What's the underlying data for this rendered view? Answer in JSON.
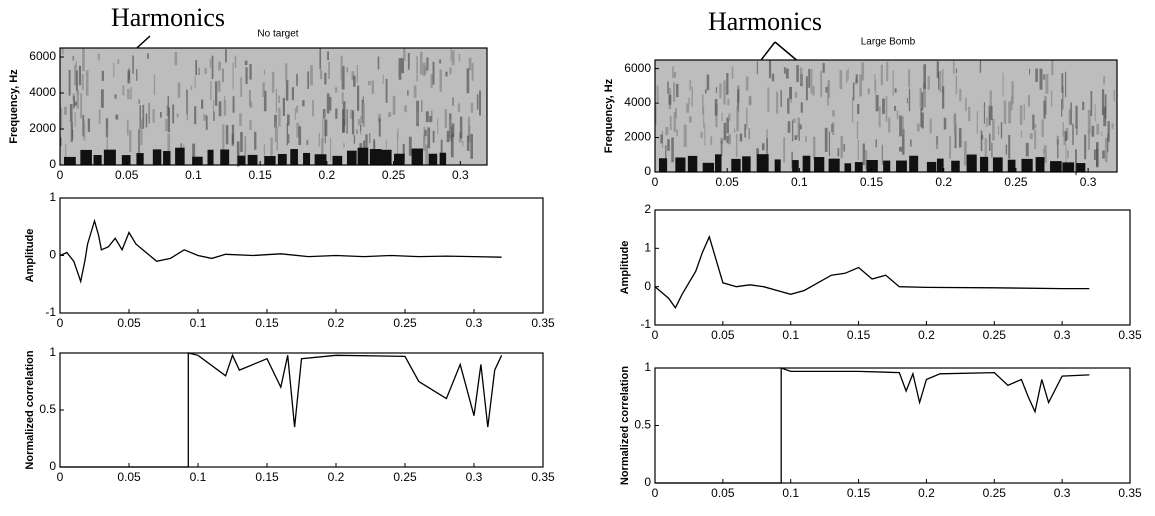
{
  "chart_data": [
    {
      "type": "spectrogram",
      "annotations": [
        "Harmonics",
        "No target"
      ],
      "ylabel": "Frequency, Hz",
      "xlim": [
        0,
        0.32
      ],
      "xticks": [
        0,
        0.05,
        0.1,
        0.15,
        0.2,
        0.25,
        0.3
      ],
      "ylim": [
        0,
        6500
      ],
      "yticks": [
        0,
        2000,
        4000,
        6000
      ]
    },
    {
      "type": "line",
      "ylabel": "Amplitude",
      "color": "#000000",
      "x": [
        0,
        0.005,
        0.01,
        0.015,
        0.018,
        0.02,
        0.025,
        0.028,
        0.03,
        0.035,
        0.04,
        0.045,
        0.05,
        0.055,
        0.06,
        0.065,
        0.07,
        0.08,
        0.09,
        0.1,
        0.11,
        0.12,
        0.14,
        0.16,
        0.18,
        0.2,
        0.22,
        0.24,
        0.26,
        0.28,
        0.3,
        0.32
      ],
      "values": [
        0,
        0.05,
        -0.1,
        -0.45,
        -0.1,
        0.2,
        0.6,
        0.35,
        0.1,
        0.15,
        0.3,
        0.1,
        0.4,
        0.2,
        0.1,
        0,
        -0.1,
        -0.05,
        0.1,
        0,
        -0.05,
        0.02,
        0,
        0.03,
        -0.02,
        0,
        -0.02,
        0,
        -0.02,
        -0.01,
        -0.02,
        -0.03
      ],
      "xlim": [
        0,
        0.35
      ],
      "xticks": [
        0,
        0.05,
        0.1,
        0.15,
        0.2,
        0.25,
        0.3,
        0.35
      ],
      "ylim": [
        -1,
        1
      ],
      "yticks": [
        -1,
        0,
        1
      ]
    },
    {
      "type": "line",
      "ylabel": "Normalized correlation",
      "color": "#000000",
      "x": [
        0,
        0.093,
        0.093,
        0.1,
        0.12,
        0.125,
        0.13,
        0.15,
        0.16,
        0.165,
        0.17,
        0.175,
        0.2,
        0.25,
        0.26,
        0.28,
        0.29,
        0.3,
        0.305,
        0.31,
        0.315,
        0.32
      ],
      "values": [
        0,
        0,
        1,
        0.98,
        0.8,
        0.98,
        0.85,
        0.95,
        0.7,
        0.98,
        0.35,
        0.95,
        0.98,
        0.97,
        0.75,
        0.6,
        0.9,
        0.45,
        0.9,
        0.35,
        0.85,
        0.98
      ],
      "xlim": [
        0,
        0.35
      ],
      "xticks": [
        0,
        0.05,
        0.1,
        0.15,
        0.2,
        0.25,
        0.3,
        0.35
      ],
      "ylim": [
        0,
        1
      ],
      "yticks": [
        0,
        0.5,
        1
      ]
    },
    {
      "type": "spectrogram",
      "annotations": [
        "Harmonics",
        "Large Bomb"
      ],
      "ylabel": "Frequency, Hz",
      "xlim": [
        0,
        0.32
      ],
      "xticks": [
        0,
        0.05,
        0.1,
        0.15,
        0.2,
        0.25,
        0.3
      ],
      "ylim": [
        0,
        6500
      ],
      "yticks": [
        0,
        2000,
        4000,
        6000
      ]
    },
    {
      "type": "line",
      "ylabel": "Amplitude",
      "color": "#000000",
      "x": [
        0,
        0.01,
        0.015,
        0.02,
        0.03,
        0.035,
        0.04,
        0.045,
        0.05,
        0.06,
        0.07,
        0.08,
        0.09,
        0.1,
        0.11,
        0.12,
        0.13,
        0.14,
        0.15,
        0.16,
        0.17,
        0.18,
        0.2,
        0.25,
        0.3,
        0.32
      ],
      "values": [
        0,
        -0.3,
        -0.55,
        -0.2,
        0.4,
        0.9,
        1.3,
        0.7,
        0.1,
        0,
        0.05,
        0,
        -0.1,
        -0.2,
        -0.1,
        0.1,
        0.3,
        0.35,
        0.5,
        0.2,
        0.3,
        0,
        -0.02,
        -0.03,
        -0.05,
        -0.05
      ],
      "xlim": [
        0,
        0.35
      ],
      "xticks": [
        0,
        0.05,
        0.1,
        0.15,
        0.2,
        0.25,
        0.3,
        0.35
      ],
      "ylim": [
        -1,
        2
      ],
      "yticks": [
        -1,
        0,
        1,
        2
      ]
    },
    {
      "type": "line",
      "ylabel": "Normalized correlation",
      "color": "#000000",
      "x": [
        0,
        0.093,
        0.093,
        0.1,
        0.15,
        0.18,
        0.185,
        0.19,
        0.195,
        0.2,
        0.21,
        0.25,
        0.26,
        0.27,
        0.275,
        0.28,
        0.285,
        0.29,
        0.3,
        0.32
      ],
      "values": [
        0,
        0,
        1,
        0.97,
        0.97,
        0.96,
        0.8,
        0.95,
        0.7,
        0.9,
        0.95,
        0.96,
        0.85,
        0.9,
        0.75,
        0.62,
        0.9,
        0.7,
        0.93,
        0.94
      ],
      "xlim": [
        0,
        0.35
      ],
      "xticks": [
        0,
        0.05,
        0.1,
        0.15,
        0.2,
        0.25,
        0.3,
        0.35
      ],
      "ylim": [
        0,
        1
      ],
      "yticks": [
        0,
        0.5,
        1
      ]
    }
  ]
}
